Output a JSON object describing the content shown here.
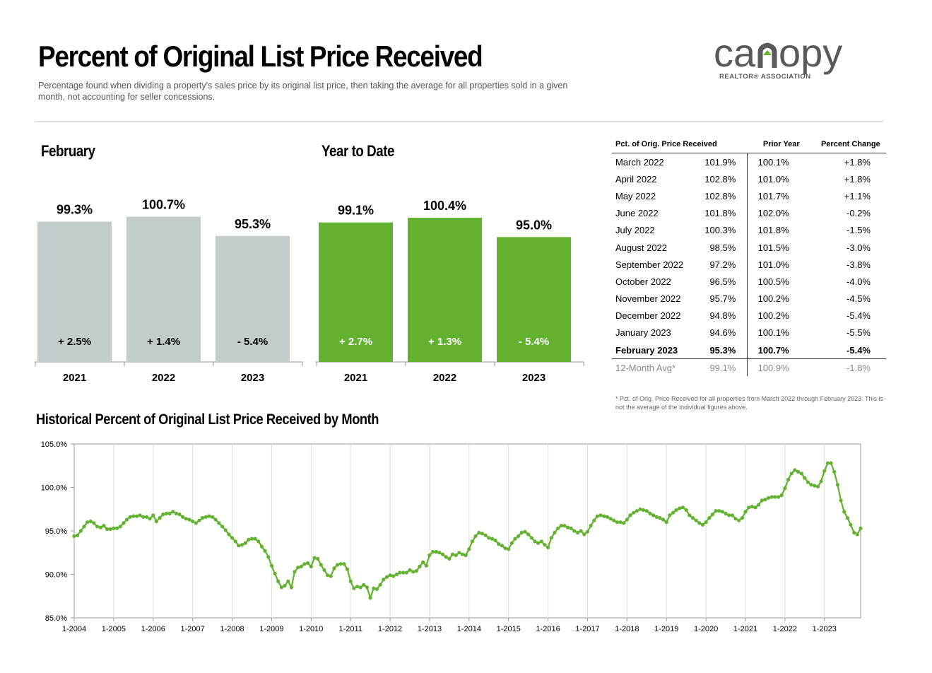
{
  "header": {
    "title": "Percent of Original List Price Received",
    "subtitle": "Percentage found when dividing a property's sales price by its original list price, then taking the average for all properties sold in a given month, not accounting for seller concessions."
  },
  "logo": {
    "text_left": "ca",
    "text_right": "opy",
    "tagline": "REALTOR® ASSOCIATION",
    "color": "#58595b",
    "roof_color": "#62b22f"
  },
  "colors": {
    "grey_bar": "#c2cccc",
    "green_bar": "#62b22f",
    "line": "#62b22f"
  },
  "february": {
    "heading": "February",
    "bars": [
      {
        "year": "2021",
        "value": 99.3,
        "label": "99.3%",
        "change": "+ 2.5%"
      },
      {
        "year": "2022",
        "value": 100.7,
        "label": "100.7%",
        "change": "+ 1.4%"
      },
      {
        "year": "2023",
        "value": 95.3,
        "label": "95.3%",
        "change": "- 5.4%"
      }
    ]
  },
  "ytd": {
    "heading": "Year to Date",
    "bars": [
      {
        "year": "2021",
        "value": 99.1,
        "label": "99.1%",
        "change": "+ 2.7%"
      },
      {
        "year": "2022",
        "value": 100.4,
        "label": "100.4%",
        "change": "+ 1.3%"
      },
      {
        "year": "2023",
        "value": 95.0,
        "label": "95.0%",
        "change": "- 5.4%"
      }
    ]
  },
  "table": {
    "headers": [
      "Pct. of Orig. Price Received",
      "Prior Year",
      "Percent Change"
    ],
    "rows": [
      {
        "month": "March 2022",
        "value": "101.9%",
        "prior": "100.1%",
        "change": "+1.8%"
      },
      {
        "month": "April 2022",
        "value": "102.8%",
        "prior": "101.0%",
        "change": "+1.8%"
      },
      {
        "month": "May 2022",
        "value": "102.8%",
        "prior": "101.7%",
        "change": "+1.1%"
      },
      {
        "month": "June 2022",
        "value": "101.8%",
        "prior": "102.0%",
        "change": "-0.2%"
      },
      {
        "month": "July 2022",
        "value": "100.3%",
        "prior": "101.8%",
        "change": "-1.5%"
      },
      {
        "month": "August 2022",
        "value": "98.5%",
        "prior": "101.5%",
        "change": "-3.0%"
      },
      {
        "month": "September 2022",
        "value": "97.2%",
        "prior": "101.0%",
        "change": "-3.8%"
      },
      {
        "month": "October 2022",
        "value": "96.5%",
        "prior": "100.5%",
        "change": "-4.0%"
      },
      {
        "month": "November 2022",
        "value": "95.7%",
        "prior": "100.2%",
        "change": "-4.5%"
      },
      {
        "month": "December 2022",
        "value": "94.8%",
        "prior": "100.2%",
        "change": "-5.4%"
      },
      {
        "month": "January 2023",
        "value": "94.6%",
        "prior": "100.1%",
        "change": "-5.5%"
      },
      {
        "month": "February 2023",
        "value": "95.3%",
        "prior": "100.7%",
        "change": "-5.4%"
      }
    ],
    "avg": {
      "month": "12-Month Avg*",
      "value": "99.1%",
      "prior": "100.9%",
      "change": "-1.8%"
    },
    "footnote": "* Pct. of Orig. Price Received for all properties from March 2022 through February 2023. This is not the average of the individual figures above."
  },
  "historical": {
    "heading": "Historical Percent of Original List Price Received by Month"
  },
  "chart_data": {
    "type": "line",
    "series": [
      {
        "values": [
          94.4,
          94.5,
          95.0,
          95.5,
          96.0,
          96.1,
          95.9,
          95.5,
          95.4,
          95.6,
          95.2,
          95.2,
          95.3,
          95.3,
          95.5,
          95.9,
          96.3,
          96.6,
          96.7,
          96.7,
          96.8,
          96.6,
          96.6,
          96.4,
          96.8,
          96.1,
          96.5,
          96.9,
          97.0,
          97.0,
          97.2,
          97.0,
          96.9,
          96.6,
          96.4,
          96.3,
          96.1,
          95.9,
          96.2,
          96.5,
          96.6,
          96.7,
          96.6,
          96.3,
          95.9,
          95.5,
          95.1,
          94.6,
          94.2,
          93.8,
          93.3,
          93.4,
          93.6,
          94.0,
          94.1,
          94.1,
          93.8,
          93.2,
          92.7,
          92.0,
          91.0,
          90.1,
          89.2,
          88.5,
          88.7,
          89.2,
          88.5,
          90.3,
          90.8,
          90.9,
          91.2,
          91.3,
          90.9,
          91.9,
          91.8,
          91.1,
          90.5,
          89.9,
          89.8,
          90.7,
          91.1,
          91.2,
          91.2,
          90.6,
          89.2,
          88.4,
          88.6,
          88.5,
          88.8,
          88.5,
          87.3,
          88.4,
          88.3,
          88.8,
          89.4,
          89.7,
          89.9,
          89.8,
          90.0,
          90.2,
          90.2,
          90.2,
          90.5,
          90.3,
          90.4,
          90.9,
          91.4,
          91.0,
          92.2,
          92.6,
          92.6,
          92.5,
          92.3,
          92.0,
          91.8,
          92.3,
          92.2,
          92.5,
          92.3,
          92.2,
          92.9,
          93.8,
          94.4,
          94.8,
          94.7,
          94.5,
          94.2,
          94.1,
          93.9,
          93.5,
          93.3,
          93.0,
          92.9,
          93.6,
          94.1,
          94.4,
          94.8,
          94.9,
          94.6,
          94.2,
          93.8,
          93.6,
          93.8,
          93.4,
          93.1,
          94.2,
          94.8,
          95.3,
          95.6,
          95.6,
          95.4,
          95.3,
          95.0,
          94.8,
          95.0,
          94.6,
          94.9,
          95.6,
          96.2,
          96.7,
          96.8,
          96.7,
          96.6,
          96.4,
          96.2,
          96.0,
          96.0,
          95.9,
          96.3,
          96.8,
          97.1,
          97.3,
          97.5,
          97.4,
          97.3,
          97.0,
          96.8,
          96.6,
          96.5,
          96.3,
          96.0,
          96.8,
          97.1,
          97.4,
          97.6,
          97.7,
          97.4,
          96.8,
          96.5,
          96.2,
          95.9,
          95.7,
          96.0,
          96.5,
          96.9,
          97.3,
          97.3,
          97.2,
          97.0,
          96.8,
          96.8,
          96.4,
          96.2,
          96.5,
          97.2,
          97.7,
          97.8,
          97.7,
          98.0,
          98.5,
          98.6,
          98.8,
          98.9,
          98.9,
          98.9,
          99.1,
          99.9,
          100.9,
          101.6,
          102.0,
          101.8,
          101.6,
          101.1,
          100.6,
          100.3,
          100.2,
          100.1,
          100.7,
          101.9,
          102.8,
          102.8,
          101.8,
          100.3,
          98.5,
          97.2,
          96.5,
          95.7,
          94.8,
          94.6,
          95.3
        ]
      }
    ],
    "x_start": "1-2004",
    "x_ticks": [
      "1-2004",
      "1-2005",
      "1-2006",
      "1-2007",
      "1-2008",
      "1-2009",
      "1-2010",
      "1-2011",
      "1-2012",
      "1-2013",
      "1-2014",
      "1-2015",
      "1-2016",
      "1-2017",
      "1-2018",
      "1-2019",
      "1-2020",
      "1-2021",
      "1-2022",
      "1-2023"
    ],
    "y_ticks": [
      "85.0%",
      "90.0%",
      "95.0%",
      "100.0%",
      "105.0%"
    ],
    "ylim": [
      85,
      105
    ],
    "grid": "vertical"
  }
}
